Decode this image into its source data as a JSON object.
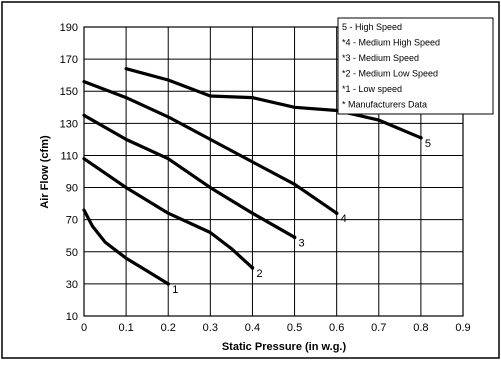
{
  "chart_data": {
    "type": "line",
    "title": "",
    "xlabel": "Static Pressure (in w.g.)",
    "ylabel": "Air Flow (cfm)",
    "xlim": [
      0,
      0.9
    ],
    "ylim": [
      10,
      190
    ],
    "xticks": [
      "0",
      "0.1",
      "0.2",
      "0.3",
      "0.4",
      "0.5",
      "0.6",
      "0.7",
      "0.8",
      "0.9"
    ],
    "yticks": [
      "10",
      "30",
      "50",
      "70",
      "90",
      "110",
      "130",
      "150",
      "170",
      "190"
    ],
    "grid": true,
    "legend_position": "top-right",
    "legend": [
      "5 - High Speed",
      "*4 - Medium High Speed",
      "*3 - Medium Speed",
      "*2 - Medium Low Speed",
      "*1 - Low speed",
      "* Manufacturers Data"
    ],
    "series": [
      {
        "label": "1",
        "x": [
          0,
          0.02,
          0.05,
          0.08,
          0.1,
          0.15,
          0.2
        ],
        "y": [
          76,
          66,
          56,
          50,
          46,
          38,
          30
        ]
      },
      {
        "label": "2",
        "x": [
          0,
          0.1,
          0.2,
          0.3,
          0.35,
          0.4
        ],
        "y": [
          108,
          90,
          74,
          62,
          52,
          40
        ]
      },
      {
        "label": "3",
        "x": [
          0,
          0.1,
          0.2,
          0.3,
          0.4,
          0.5
        ],
        "y": [
          135,
          120,
          108,
          90,
          74,
          59
        ]
      },
      {
        "label": "4",
        "x": [
          0,
          0.1,
          0.2,
          0.3,
          0.4,
          0.5,
          0.6
        ],
        "y": [
          156,
          146,
          134,
          120,
          106,
          92,
          74
        ]
      },
      {
        "label": "5",
        "x": [
          0.1,
          0.2,
          0.3,
          0.4,
          0.5,
          0.6,
          0.7,
          0.8
        ],
        "y": [
          164,
          157,
          147,
          146,
          140,
          138,
          132,
          121
        ]
      }
    ]
  }
}
